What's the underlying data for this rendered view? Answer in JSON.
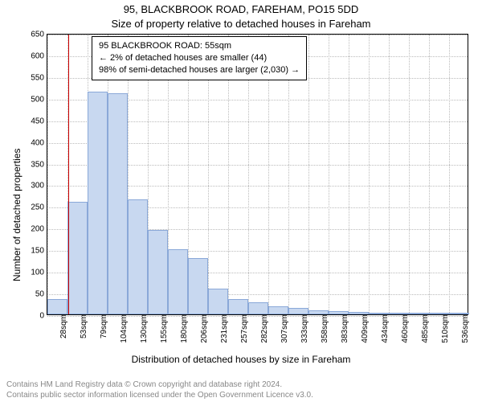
{
  "chart": {
    "type": "histogram",
    "title": "95, BLACKBROOK ROAD, FAREHAM, PO15 5DD",
    "subtitle": "Size of property relative to detached houses in Fareham",
    "ylabel": "Number of detached properties",
    "xlabel": "Distribution of detached houses by size in Fareham",
    "ylim": [
      0,
      650
    ],
    "ytick_step": 50,
    "xticks": [
      "28sqm",
      "53sqm",
      "79sqm",
      "104sqm",
      "130sqm",
      "155sqm",
      "180sqm",
      "206sqm",
      "231sqm",
      "257sqm",
      "282sqm",
      "307sqm",
      "333sqm",
      "358sqm",
      "383sqm",
      "409sqm",
      "434sqm",
      "460sqm",
      "485sqm",
      "510sqm",
      "536sqm"
    ],
    "values": [
      35,
      260,
      515,
      510,
      265,
      195,
      150,
      130,
      60,
      35,
      28,
      18,
      15,
      10,
      8,
      6,
      3,
      3,
      2,
      2,
      1
    ],
    "bar_color": "#c8d8f0",
    "bar_border_color": "#8aa8d8",
    "grid_color": "#bbbbbb",
    "axis_color": "#000000",
    "background_color": "#ffffff",
    "marker_line_color": "#cc0000",
    "marker_position_index": 1.05,
    "title_fontsize": 13,
    "label_fontsize": 12,
    "tick_fontsize": 10,
    "callout": {
      "line1": "95 BLACKBROOK ROAD: 55sqm",
      "line2": "← 2% of detached houses are smaller (44)",
      "line3": "98% of semi-detached houses are larger (2,030) →",
      "border_color": "#000000",
      "background_color": "#ffffff",
      "fontsize": 11
    },
    "footer": {
      "line1": "Contains HM Land Registry data © Crown copyright and database right 2024.",
      "line2": "Contains public sector information licensed under the Open Government Licence v3.0.",
      "color": "#888888",
      "fontsize": 10
    }
  }
}
